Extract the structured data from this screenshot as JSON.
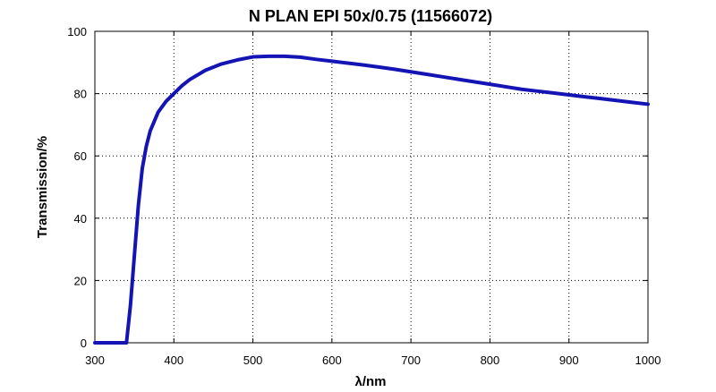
{
  "chart_data": {
    "type": "line",
    "title": "N PLAN EPI 50x/0.75 (11566072)",
    "xlabel": "λ/nm",
    "ylabel": "Transmission/%",
    "xlim": [
      300,
      1000
    ],
    "ylim": [
      0,
      100
    ],
    "xticks": [
      300,
      400,
      500,
      600,
      700,
      800,
      900,
      1000
    ],
    "yticks": [
      0,
      20,
      40,
      60,
      80,
      100
    ],
    "grid": true,
    "series_color": "#1414b4",
    "series": [
      {
        "x": [
          300,
          340,
          345,
          350,
          355,
          360,
          365,
          370,
          375,
          380,
          390,
          400,
          410,
          420,
          440,
          460,
          480,
          500,
          520,
          540,
          560,
          580,
          600,
          620,
          640,
          660,
          680,
          700,
          720,
          740,
          760,
          780,
          800,
          820,
          840,
          860,
          880,
          900,
          920,
          940,
          960,
          980,
          1000
        ],
        "y": [
          0,
          0,
          12,
          28,
          44,
          56,
          63,
          68,
          71,
          74,
          77.5,
          80,
          82.5,
          84.5,
          87.5,
          89.5,
          90.8,
          91.8,
          92.0,
          92.0,
          91.7,
          91.0,
          90.4,
          89.8,
          89.2,
          88.5,
          87.8,
          87.0,
          86.2,
          85.4,
          84.6,
          83.8,
          83.0,
          82.2,
          81.4,
          80.8,
          80.2,
          79.6,
          79.0,
          78.4,
          77.8,
          77.2,
          76.6
        ]
      }
    ]
  }
}
